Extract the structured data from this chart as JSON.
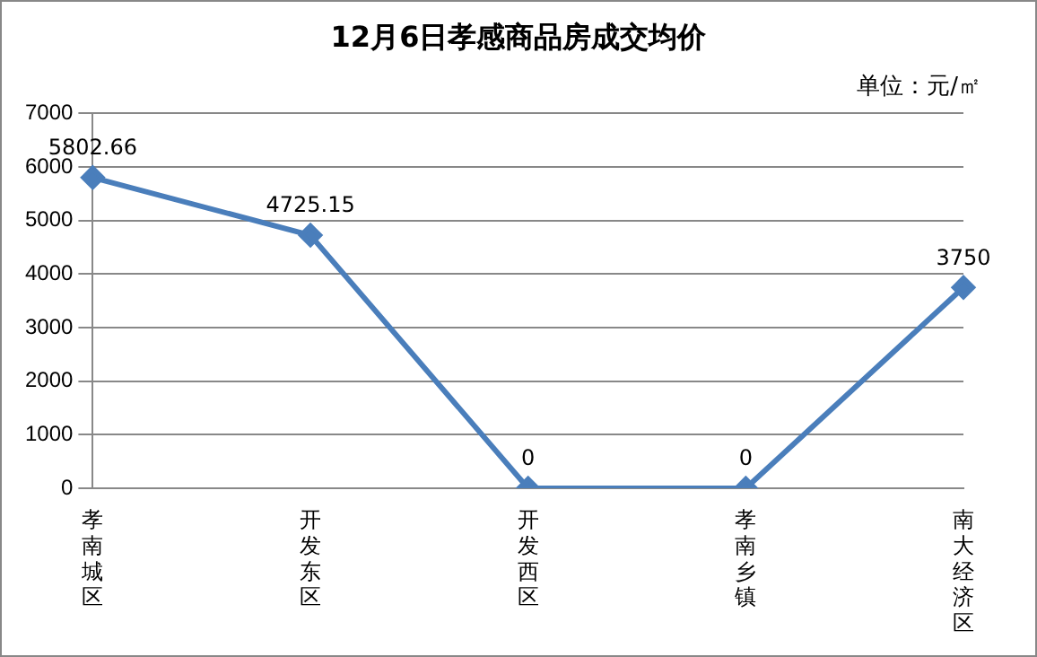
{
  "chart_data": {
    "type": "line",
    "title": "12月6日孝感商品房成交均价",
    "annotations": [
      "单位：元/㎡"
    ],
    "categories": [
      "孝南城区",
      "开发东区",
      "开发西区",
      "孝南乡镇",
      "南大经济区"
    ],
    "series": [
      {
        "color": "#4a7ebb",
        "values": [
          5802.66,
          4725.15,
          0,
          0,
          3750
        ]
      }
    ],
    "ylim": [
      0,
      7000
    ],
    "yticks": [
      0,
      1000,
      2000,
      3000,
      4000,
      5000,
      6000,
      7000
    ],
    "grid": "y",
    "legend": false,
    "marker": "diamond",
    "line_style": "solid",
    "data_labels": true
  }
}
